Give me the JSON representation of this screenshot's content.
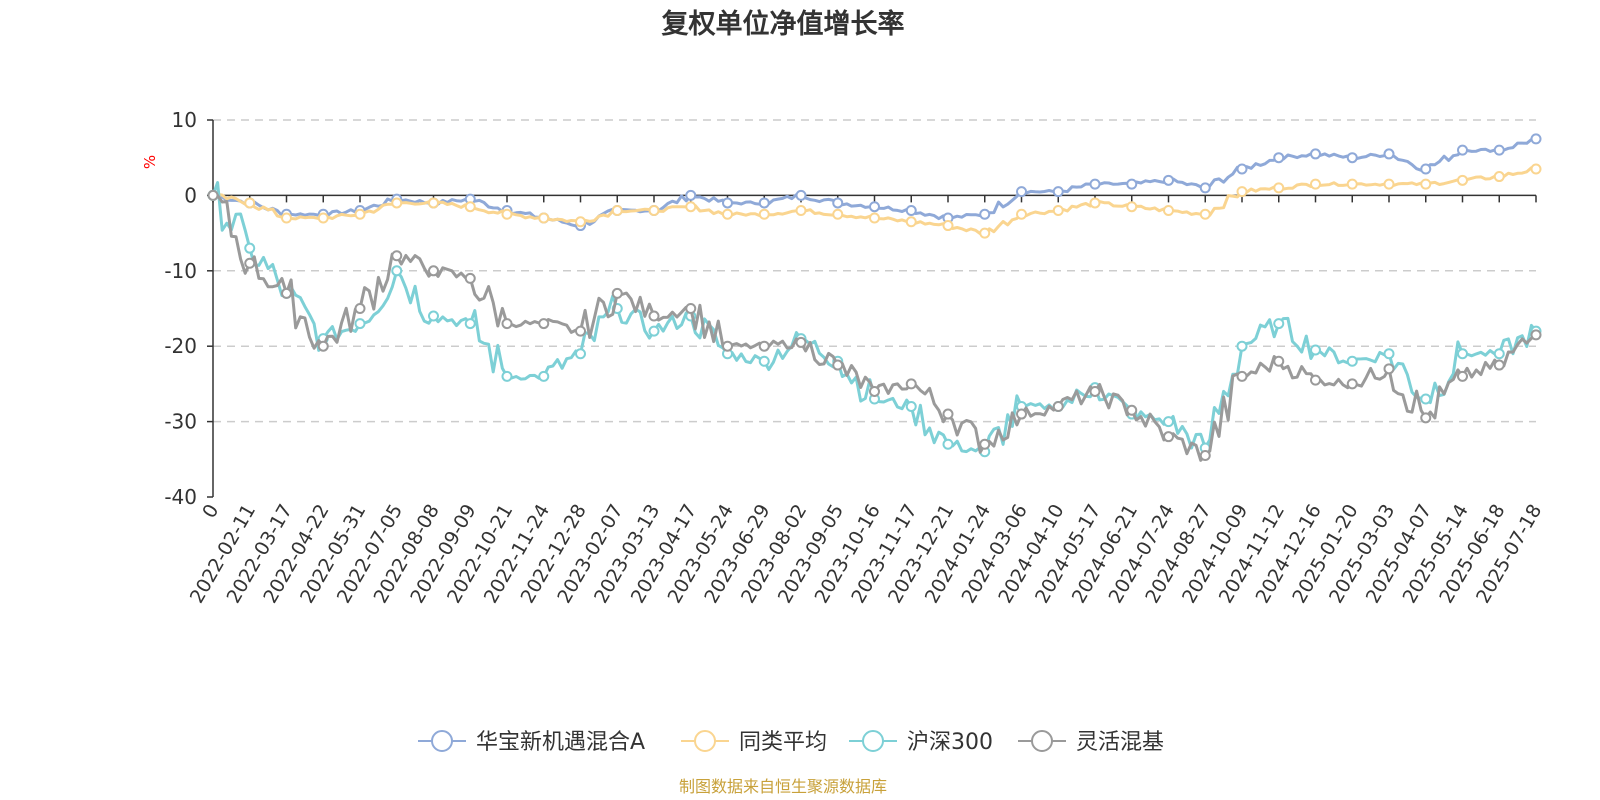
{
  "chart_data": {
    "type": "line",
    "title": "复权单位净值增长率",
    "y_unit": "%",
    "ylim": [
      -40,
      10
    ],
    "y_ticks": [
      10,
      0,
      -10,
      -20,
      -30,
      -40
    ],
    "grid": "horizontal dashed",
    "legend_position": "bottom-center",
    "x_tick_labels": [
      "0",
      "2022-02-11",
      "2022-03-17",
      "2022-04-22",
      "2022-05-31",
      "2022-07-05",
      "2022-08-08",
      "2022-09-09",
      "2022-10-21",
      "2022-11-24",
      "2022-12-28",
      "2023-02-07",
      "2023-03-13",
      "2023-04-17",
      "2023-05-24",
      "2023-06-29",
      "2023-08-02",
      "2023-09-05",
      "2023-10-16",
      "2023-11-17",
      "2023-12-21",
      "2024-01-24",
      "2024-03-06",
      "2024-04-10",
      "2024-05-17",
      "2024-06-21",
      "2024-07-24",
      "2024-08-27",
      "2024-10-09",
      "2024-11-12",
      "2024-12-16",
      "2025-01-20",
      "2025-03-03",
      "2025-04-07",
      "2025-05-14",
      "2025-06-18",
      "2025-07-18"
    ],
    "series": [
      {
        "name": "华宝新机遇混合A",
        "color": "#8fa9d8",
        "values": [
          0,
          -1,
          -2.5,
          -2.5,
          -2,
          -0.5,
          -1,
          -0.5,
          -2,
          -3,
          -4,
          -2,
          -2,
          0,
          -1,
          -1,
          0,
          -1,
          -1.5,
          -2,
          -3,
          -2.5,
          0.5,
          0.5,
          1.5,
          1.5,
          2,
          1,
          3.5,
          5,
          5.5,
          5,
          5.5,
          3.5,
          6,
          6,
          7.5
        ]
      },
      {
        "name": "同类平均",
        "color": "#fad590",
        "values": [
          0,
          -1,
          -3,
          -3,
          -2.5,
          -1,
          -1,
          -1.5,
          -2.5,
          -3,
          -3.5,
          -2,
          -2,
          -1.5,
          -2.5,
          -2.5,
          -2,
          -2.5,
          -3,
          -3.5,
          -4,
          -5,
          -2.5,
          -2,
          -1,
          -1.5,
          -2,
          -2.5,
          0.5,
          1,
          1.5,
          1.5,
          1.5,
          1.5,
          2,
          2.5,
          3.5
        ]
      },
      {
        "name": "沪深300",
        "color": "#7dd0d6",
        "values": [
          0,
          -7,
          -13,
          -19,
          -17,
          -10,
          -16,
          -17,
          -24,
          -24,
          -21,
          -15,
          -18,
          -16,
          -21,
          -22,
          -19,
          -22,
          -27,
          -28,
          -33,
          -34,
          -28,
          -28,
          -25.5,
          -29,
          -30,
          -33.5,
          -20,
          -17,
          -20.5,
          -22,
          -21,
          -27,
          -21,
          -21,
          -18
        ]
      },
      {
        "name": "灵活混基",
        "color": "#9a9a9a",
        "values": [
          0,
          -9,
          -13,
          -20,
          -15,
          -8,
          -10,
          -11,
          -17,
          -17,
          -18,
          -13,
          -16,
          -15,
          -20,
          -20,
          -19.5,
          -22.5,
          -26,
          -25,
          -29,
          -33,
          -29,
          -28,
          -26,
          -28.5,
          -32,
          -34.5,
          -24,
          -22,
          -24.5,
          -25,
          -23,
          -29.5,
          -24,
          -22.5,
          -18.5
        ]
      }
    ]
  },
  "footer": {
    "source_text": "制图数据来自恒生聚源数据库"
  }
}
